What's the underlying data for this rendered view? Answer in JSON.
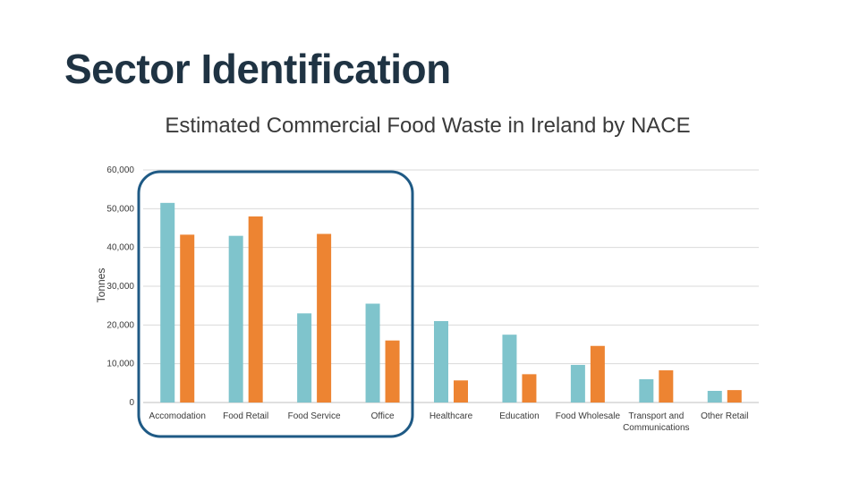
{
  "slide": {
    "title": "Sector Identification"
  },
  "chart_data": {
    "type": "bar",
    "title": "Estimated Commercial Food Waste in Ireland by NACE",
    "xlabel": "",
    "ylabel": "Tonnes",
    "ylim": [
      0,
      60000
    ],
    "yticks": [
      0,
      10000,
      20000,
      30000,
      40000,
      50000,
      60000
    ],
    "ytick_labels": [
      "0",
      "10,000",
      "20,000",
      "30,000",
      "40,000",
      "50,000",
      "60,000"
    ],
    "grid": true,
    "legend": "none",
    "categories": [
      [
        "Accomodation"
      ],
      [
        "Food Retail"
      ],
      [
        "Food Service"
      ],
      [
        "Office"
      ],
      [
        "Healthcare"
      ],
      [
        "Education"
      ],
      [
        "Food Wholesale"
      ],
      [
        "Transport and",
        "Communications"
      ],
      [
        "Other Retail"
      ]
    ],
    "series": [
      {
        "color": "#7fc4cc",
        "values": [
          51500,
          43000,
          23000,
          25500,
          21000,
          17500,
          9700,
          6000,
          3000
        ]
      },
      {
        "color": "#ed8432",
        "values": [
          43300,
          48000,
          43500,
          16000,
          5700,
          7300,
          14600,
          8300,
          3200
        ]
      }
    ],
    "highlight_color": "#1f5a85"
  }
}
